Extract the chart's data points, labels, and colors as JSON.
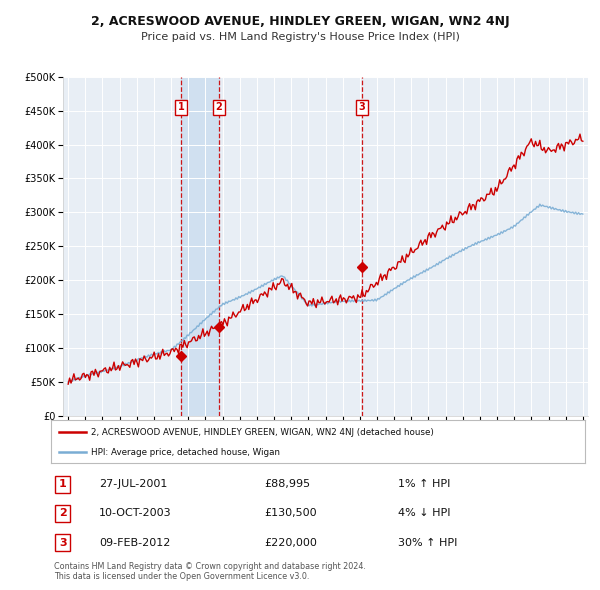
{
  "title": "2, ACRESWOOD AVENUE, HINDLEY GREEN, WIGAN, WN2 4NJ",
  "subtitle": "Price paid vs. HM Land Registry's House Price Index (HPI)",
  "legend_label_red": "2, ACRESWOOD AVENUE, HINDLEY GREEN, WIGAN, WN2 4NJ (detached house)",
  "legend_label_blue": "HPI: Average price, detached house, Wigan",
  "footer": "Contains HM Land Registry data © Crown copyright and database right 2024.\nThis data is licensed under the Open Government Licence v3.0.",
  "sale_points": [
    {
      "label": "1",
      "date_num": 2001.57,
      "price": 88995
    },
    {
      "label": "2",
      "date_num": 2003.78,
      "price": 130500
    },
    {
      "label": "3",
      "date_num": 2012.11,
      "price": 220000
    }
  ],
  "table_rows": [
    {
      "num": "1",
      "date": "27-JUL-2001",
      "price": "£88,995",
      "hpi_change": "1% ↑ HPI"
    },
    {
      "num": "2",
      "date": "10-OCT-2003",
      "price": "£130,500",
      "hpi_change": "4% ↓ HPI"
    },
    {
      "num": "3",
      "date": "09-FEB-2012",
      "price": "£220,000",
      "hpi_change": "30% ↑ HPI"
    }
  ],
  "background_color": "#ffffff",
  "plot_bg_color": "#e8eef5",
  "grid_color": "#ffffff",
  "red_color": "#cc0000",
  "blue_color": "#7aadd4",
  "shade_color": "#d0e0f0",
  "ylim": [
    0,
    500000
  ],
  "xlim_start": 1994.7,
  "xlim_end": 2025.3,
  "yticks": [
    0,
    50000,
    100000,
    150000,
    200000,
    250000,
    300000,
    350000,
    400000,
    450000,
    500000
  ]
}
